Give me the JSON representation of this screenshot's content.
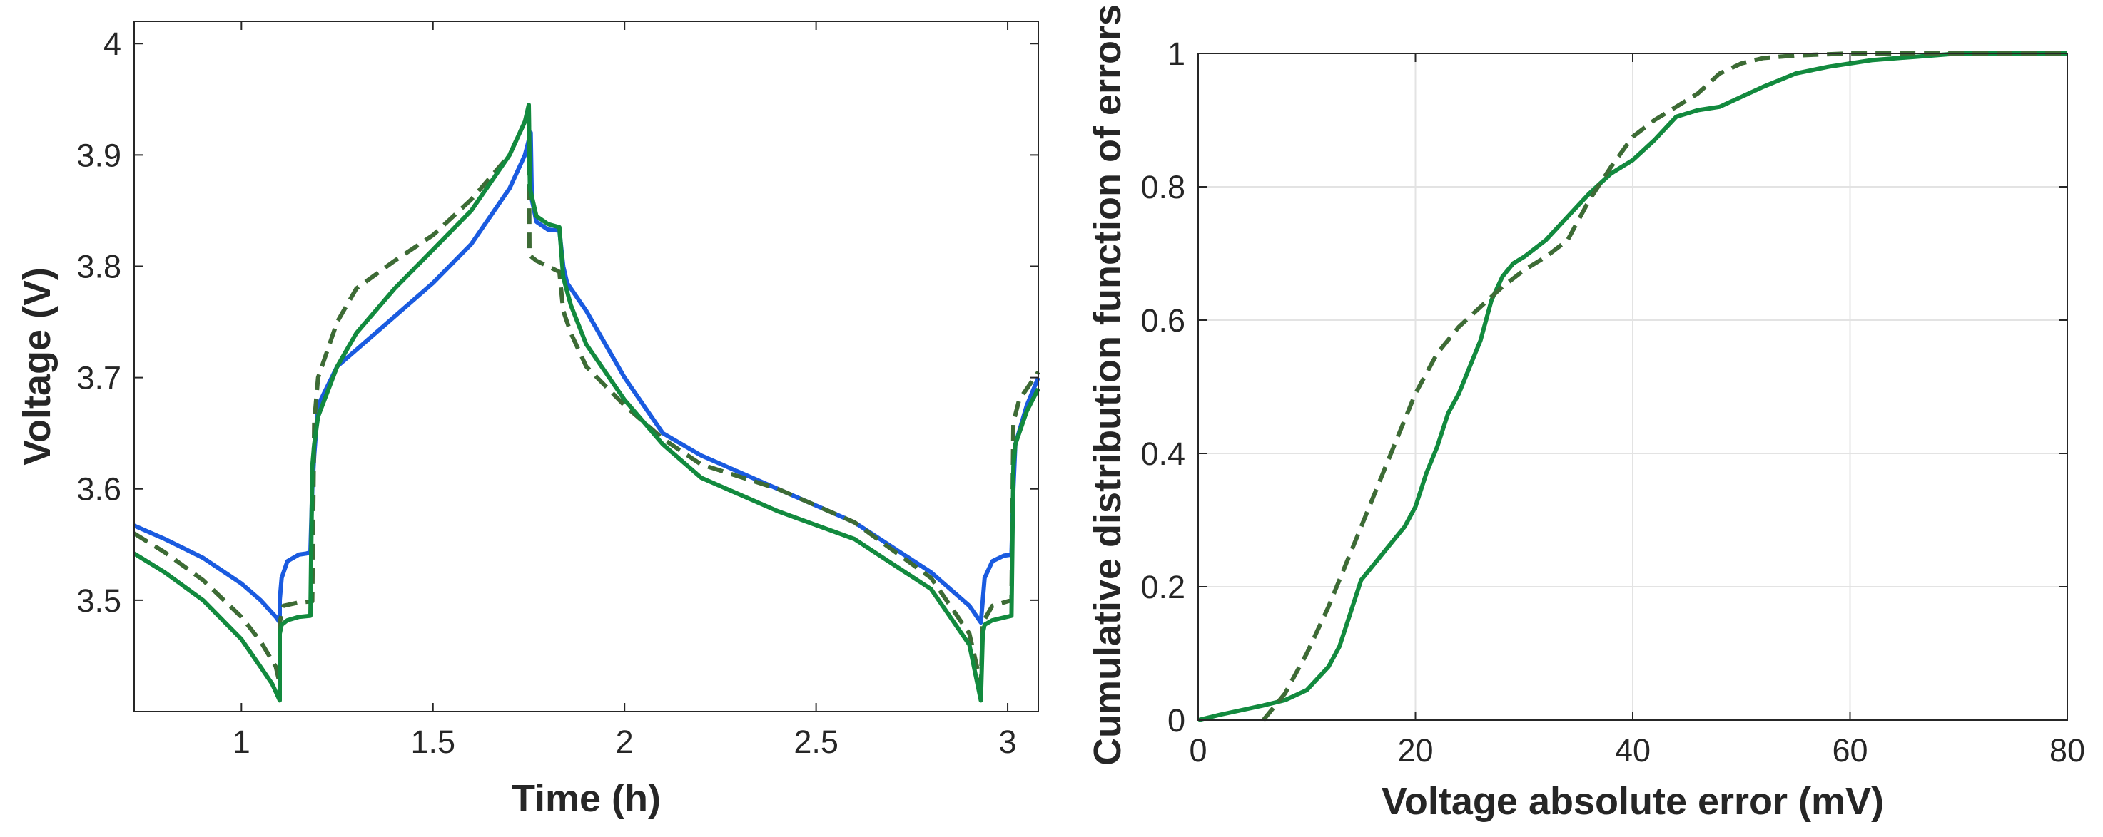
{
  "chart_data": [
    {
      "type": "line",
      "title": "",
      "xlabel": "Time (h)",
      "ylabel": "Voltage (V)",
      "xlim": [
        0.72,
        3.08
      ],
      "ylim": [
        3.4,
        4.02
      ],
      "xticks": [
        1,
        1.5,
        2,
        2.5,
        3
      ],
      "xtick_labels": [
        "1",
        "1.5",
        "2",
        "2.5",
        "3"
      ],
      "yticks": [
        3.5,
        3.6,
        3.7,
        3.8,
        3.9,
        4.0
      ],
      "ytick_labels": [
        "3.5",
        "3.6",
        "3.7",
        "3.8",
        "3.9",
        "4"
      ],
      "grid": false,
      "series": [
        {
          "name": "blue",
          "color": "#1a5be0",
          "dash": "solid",
          "x": [
            0.72,
            0.8,
            0.9,
            1.0,
            1.05,
            1.09,
            1.1,
            1.1,
            1.105,
            1.12,
            1.15,
            1.17,
            1.18,
            1.185,
            1.19,
            1.2,
            1.25,
            1.3,
            1.4,
            1.5,
            1.6,
            1.7,
            1.74,
            1.755,
            1.758,
            1.77,
            1.8,
            1.83,
            1.84,
            1.85,
            1.9,
            2.0,
            2.1,
            2.2,
            2.4,
            2.6,
            2.8,
            2.9,
            2.93,
            2.935,
            2.94,
            2.96,
            2.99,
            3.01,
            3.015,
            3.02,
            3.05,
            3.08
          ],
          "y": [
            3.567,
            3.555,
            3.538,
            3.515,
            3.5,
            3.485,
            3.48,
            3.5,
            3.52,
            3.535,
            3.541,
            3.542,
            3.543,
            3.6,
            3.63,
            3.675,
            3.71,
            3.725,
            3.755,
            3.785,
            3.82,
            3.87,
            3.9,
            3.92,
            3.86,
            3.84,
            3.833,
            3.832,
            3.8,
            3.785,
            3.76,
            3.7,
            3.65,
            3.63,
            3.6,
            3.57,
            3.525,
            3.495,
            3.48,
            3.5,
            3.52,
            3.535,
            3.54,
            3.541,
            3.6,
            3.64,
            3.675,
            3.7
          ]
        },
        {
          "name": "green-dashed",
          "color": "#3d6b35",
          "dash": "dashed",
          "x": [
            0.72,
            0.8,
            0.9,
            1.0,
            1.05,
            1.09,
            1.1,
            1.1,
            1.11,
            1.15,
            1.185,
            1.19,
            1.2,
            1.25,
            1.3,
            1.4,
            1.5,
            1.6,
            1.7,
            1.74,
            1.75,
            1.752,
            1.77,
            1.8,
            1.83,
            1.84,
            1.86,
            1.9,
            2.0,
            2.1,
            2.2,
            2.4,
            2.6,
            2.8,
            2.9,
            2.93,
            2.935,
            2.96,
            3.01,
            3.015,
            3.03,
            3.06,
            3.08
          ],
          "y": [
            3.56,
            3.543,
            3.518,
            3.485,
            3.463,
            3.44,
            3.425,
            3.48,
            3.495,
            3.498,
            3.499,
            3.66,
            3.7,
            3.75,
            3.78,
            3.805,
            3.828,
            3.86,
            3.9,
            3.93,
            3.94,
            3.81,
            3.805,
            3.8,
            3.795,
            3.76,
            3.74,
            3.71,
            3.675,
            3.645,
            3.622,
            3.6,
            3.57,
            3.52,
            3.47,
            3.425,
            3.48,
            3.495,
            3.5,
            3.66,
            3.68,
            3.695,
            3.705
          ]
        },
        {
          "name": "green",
          "color": "#128a3e",
          "dash": "solid",
          "x": [
            0.72,
            0.8,
            0.9,
            1.0,
            1.05,
            1.08,
            1.1,
            1.1,
            1.105,
            1.12,
            1.15,
            1.18,
            1.185,
            1.19,
            1.2,
            1.25,
            1.3,
            1.4,
            1.5,
            1.6,
            1.7,
            1.74,
            1.75,
            1.753,
            1.77,
            1.8,
            1.83,
            1.84,
            1.86,
            1.9,
            2.0,
            2.1,
            2.2,
            2.4,
            2.6,
            2.8,
            2.9,
            2.93,
            2.935,
            2.94,
            2.96,
            3.01,
            3.015,
            3.02,
            3.05,
            3.08
          ],
          "y": [
            3.542,
            3.525,
            3.5,
            3.465,
            3.44,
            3.425,
            3.41,
            3.47,
            3.478,
            3.482,
            3.485,
            3.486,
            3.62,
            3.64,
            3.665,
            3.71,
            3.74,
            3.78,
            3.815,
            3.85,
            3.9,
            3.93,
            3.945,
            3.87,
            3.845,
            3.838,
            3.835,
            3.79,
            3.765,
            3.73,
            3.68,
            3.64,
            3.61,
            3.58,
            3.555,
            3.51,
            3.46,
            3.41,
            3.47,
            3.478,
            3.482,
            3.486,
            3.62,
            3.64,
            3.67,
            3.69
          ]
        }
      ]
    },
    {
      "type": "line",
      "title": "",
      "xlabel": "Voltage absolute error (mV)",
      "ylabel": "Cumulative distribution function of errors",
      "xlim": [
        0,
        80
      ],
      "ylim": [
        0,
        1
      ],
      "xticks": [
        0,
        20,
        40,
        60,
        80
      ],
      "xtick_labels": [
        "0",
        "20",
        "40",
        "60",
        "80"
      ],
      "yticks": [
        0,
        0.2,
        0.4,
        0.6,
        0.8,
        1
      ],
      "ytick_labels": [
        "0",
        "0.2",
        "0.4",
        "0.6",
        "0.8",
        "1"
      ],
      "grid": true,
      "series": [
        {
          "name": "green",
          "color": "#128a3e",
          "dash": "solid",
          "x": [
            0,
            2,
            4,
            6,
            8,
            10,
            12,
            13,
            14,
            15,
            16,
            18,
            19,
            20,
            21,
            22,
            23,
            24,
            25,
            26,
            27,
            28,
            29,
            30,
            32,
            34,
            36,
            38,
            40,
            42,
            44,
            46,
            48,
            50,
            52,
            55,
            58,
            62,
            66,
            70,
            75,
            80
          ],
          "y": [
            0,
            0.008,
            0.015,
            0.022,
            0.03,
            0.045,
            0.08,
            0.11,
            0.16,
            0.21,
            0.23,
            0.27,
            0.29,
            0.32,
            0.37,
            0.41,
            0.46,
            0.49,
            0.53,
            0.57,
            0.63,
            0.665,
            0.685,
            0.695,
            0.72,
            0.755,
            0.79,
            0.82,
            0.84,
            0.87,
            0.905,
            0.915,
            0.92,
            0.935,
            0.95,
            0.97,
            0.98,
            0.99,
            0.995,
            1,
            1,
            1
          ]
        },
        {
          "name": "green-dashed",
          "color": "#3d6b35",
          "dash": "dashed",
          "x": [
            6,
            7,
            8,
            9,
            10,
            12,
            14,
            16,
            18,
            20,
            22,
            24,
            26,
            28,
            30,
            32,
            34,
            36,
            38,
            40,
            42,
            44,
            46,
            48,
            50,
            52,
            55,
            60,
            65,
            70,
            75,
            80
          ],
          "y": [
            0,
            0.02,
            0.04,
            0.07,
            0.1,
            0.17,
            0.25,
            0.33,
            0.41,
            0.49,
            0.55,
            0.59,
            0.62,
            0.65,
            0.675,
            0.695,
            0.72,
            0.78,
            0.83,
            0.875,
            0.9,
            0.92,
            0.94,
            0.97,
            0.985,
            0.993,
            0.997,
            1,
            1,
            1,
            1,
            1
          ]
        }
      ]
    }
  ]
}
